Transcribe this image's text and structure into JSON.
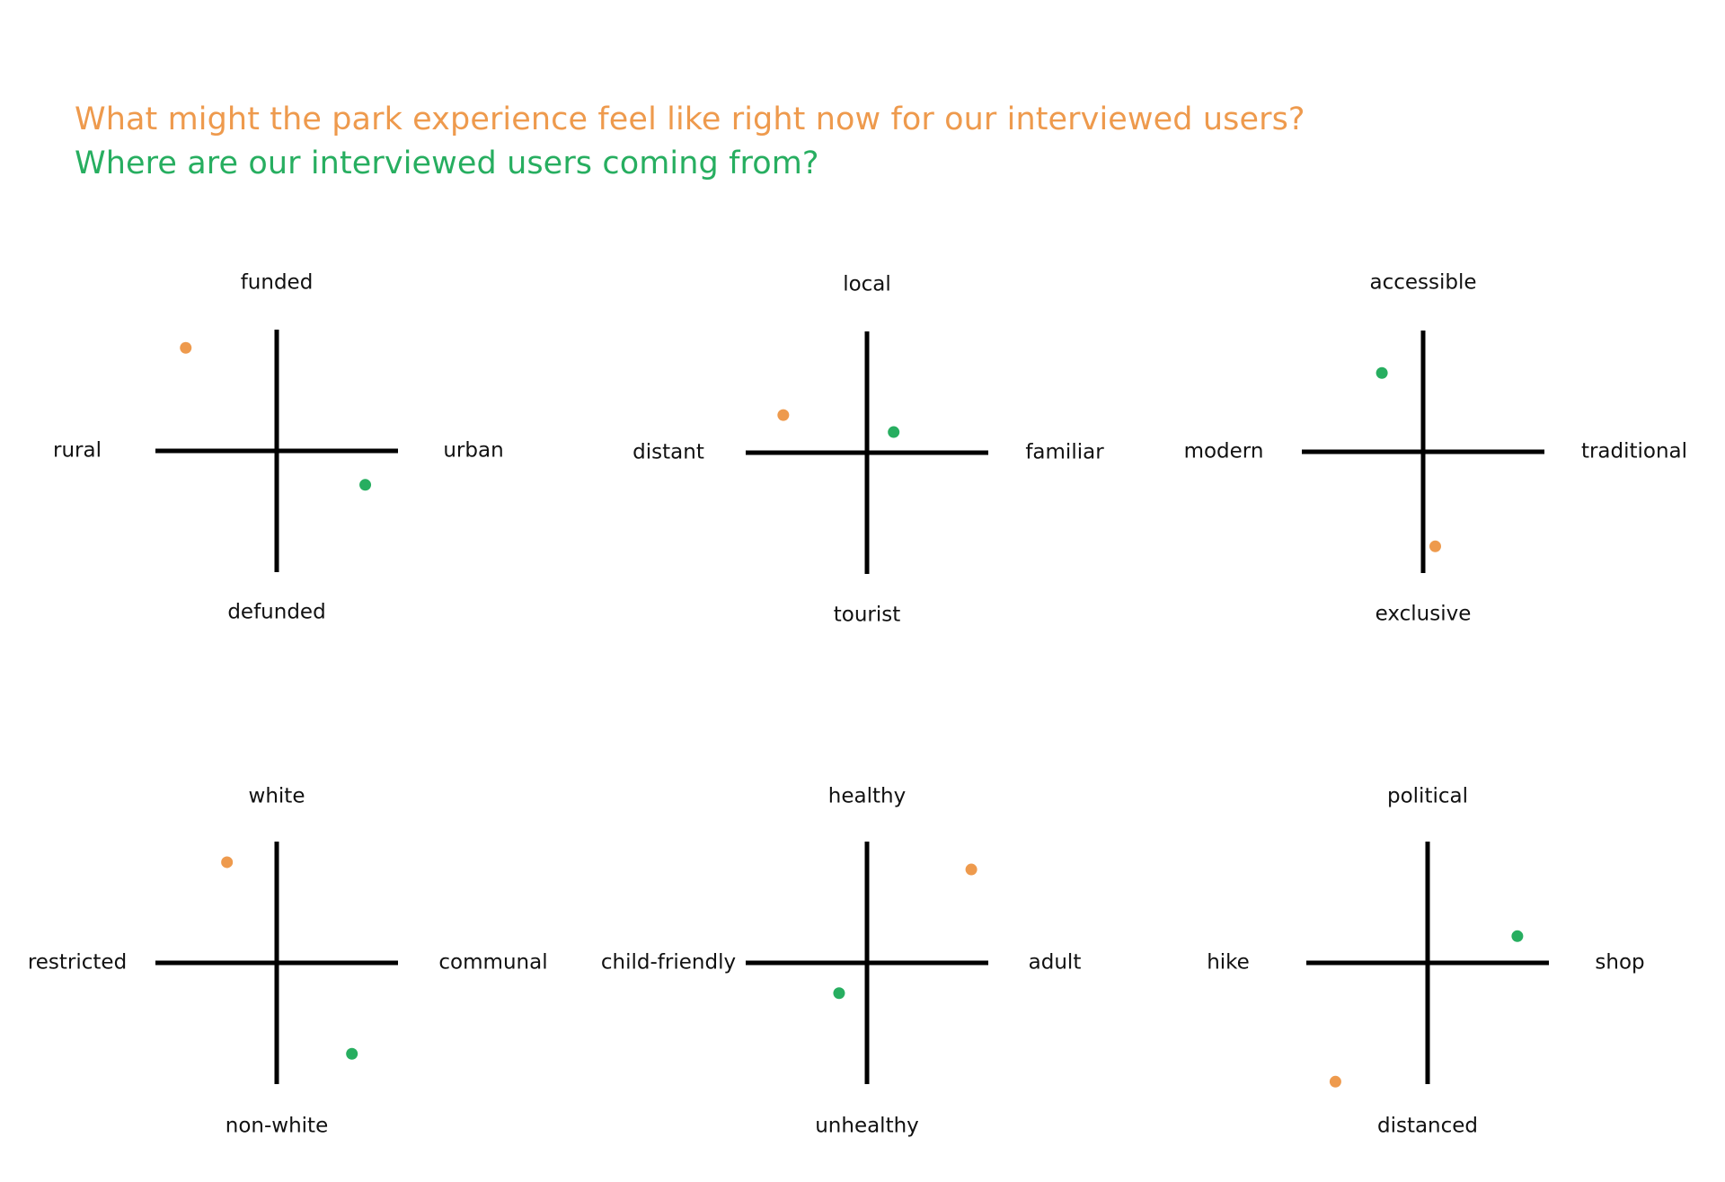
{
  "colors": {
    "orange": "#EE9A4D",
    "green": "#27AE60",
    "axis": "#000000",
    "text": "#111111"
  },
  "legend": {
    "orange_question": "What might the park experience feel like right now for our interviewed users?",
    "green_question": "Where are our interviewed users coming from?"
  },
  "charts": [
    {
      "top": "funded",
      "bottom": "defunded",
      "left": "rural",
      "right": "urban",
      "orange": [
        -0.75,
        0.85
      ],
      "green": [
        0.73,
        -0.28
      ]
    },
    {
      "top": "local",
      "bottom": "tourist",
      "left": "distant",
      "right": "familiar",
      "orange": [
        -0.69,
        0.31
      ],
      "green": [
        0.22,
        0.17
      ]
    },
    {
      "top": "accessible",
      "bottom": "exclusive",
      "left": "modern",
      "right": "traditional",
      "orange": [
        0.1,
        -0.78
      ],
      "green": [
        -0.34,
        0.65
      ]
    },
    {
      "top": "white",
      "bottom": "non-white",
      "left": "restricted",
      "right": "communal",
      "orange": [
        -0.41,
        0.83
      ],
      "green": [
        0.62,
        -0.75
      ]
    },
    {
      "top": "healthy",
      "bottom": "unhealthy",
      "left": "child-friendly",
      "right": "adult",
      "orange": [
        0.86,
        0.77
      ],
      "green": [
        -0.23,
        -0.25
      ]
    },
    {
      "top": "political",
      "bottom": "distanced",
      "left": "hike",
      "right": "shop",
      "orange": [
        -0.76,
        -0.98
      ],
      "green": [
        0.74,
        0.22
      ]
    }
  ]
}
